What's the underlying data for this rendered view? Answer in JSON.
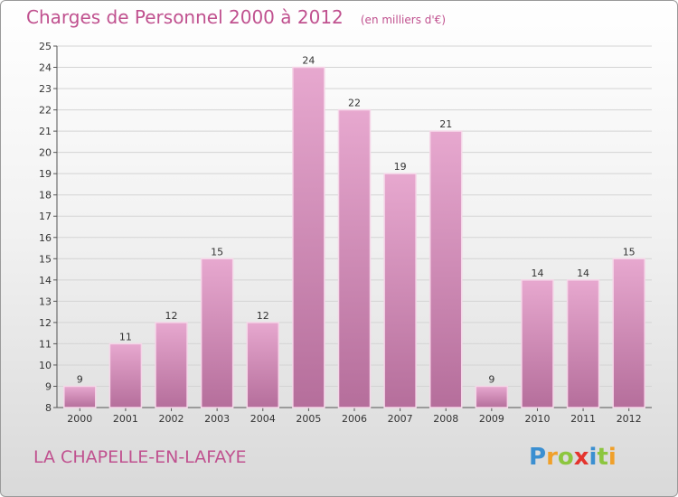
{
  "title": "Charges de Personnel 2000 à 2012",
  "unit_note": "(en milliers d'€)",
  "commune": "LA CHAPELLE-EN-LAFAYE",
  "brand": {
    "name": "Proxiti",
    "letters": [
      {
        "ch": "P",
        "color": "#3b8fd1"
      },
      {
        "ch": "r",
        "color": "#f0a02a"
      },
      {
        "ch": "o",
        "color": "#8cc63f"
      },
      {
        "ch": "x",
        "color": "#e4342d"
      },
      {
        "ch": "i",
        "color": "#3b8fd1"
      },
      {
        "ch": "t",
        "color": "#8cc63f"
      },
      {
        "ch": "i",
        "color": "#f0a02a"
      }
    ]
  },
  "colors": {
    "accent": "#c0518f",
    "bar_top": "#e7a8cf",
    "bar_bottom": "#b56e9b"
  },
  "chart_data": {
    "type": "bar",
    "categories": [
      "2000",
      "2001",
      "2002",
      "2003",
      "2004",
      "2005",
      "2006",
      "2007",
      "2008",
      "2009",
      "2010",
      "2011",
      "2012"
    ],
    "values": [
      9,
      11,
      12,
      15,
      12,
      24,
      22,
      19,
      21,
      9,
      14,
      14,
      15
    ],
    "ylim": [
      8,
      25
    ],
    "yticks": [
      8,
      9,
      10,
      11,
      12,
      13,
      14,
      15,
      16,
      17,
      18,
      19,
      20,
      21,
      22,
      23,
      24,
      25
    ],
    "grid": true
  }
}
